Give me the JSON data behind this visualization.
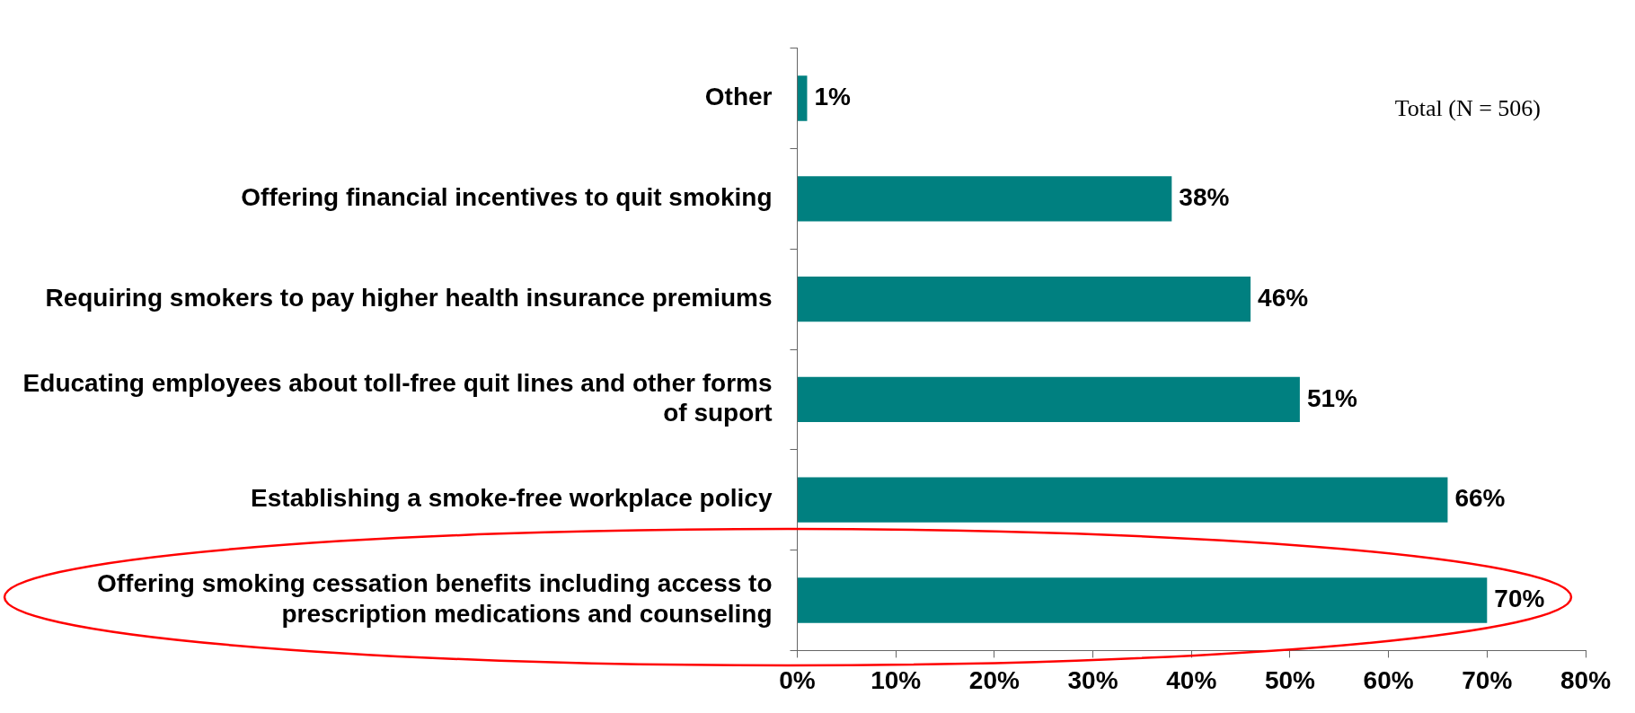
{
  "chart_data": {
    "type": "bar",
    "orientation": "horizontal",
    "categories": [
      "Other",
      "Offering financial incentives to quit smoking",
      "Requiring smokers to pay higher health insurance premiums",
      "Educating employees about toll-free quit lines and other forms of suport",
      "Establishing a smoke-free workplace policy",
      "Offering smoking cessation benefits including access to prescription medications and counseling"
    ],
    "values": [
      1,
      38,
      46,
      51,
      66,
      70
    ],
    "value_labels": [
      "1%",
      "38%",
      "46%",
      "51%",
      "66%",
      "70%"
    ],
    "color": "#008080",
    "xlim": [
      0,
      80
    ],
    "xticks": [
      {
        "value": 0,
        "label": "0%"
      },
      {
        "value": 10,
        "label": "10%"
      },
      {
        "value": 20,
        "label": "20%"
      },
      {
        "value": 30,
        "label": "30%"
      },
      {
        "value": 40,
        "label": "40%"
      },
      {
        "value": 50,
        "label": "50%"
      },
      {
        "value": 60,
        "label": "60%"
      },
      {
        "value": 70,
        "label": "70%"
      },
      {
        "value": 80,
        "label": "80%"
      }
    ],
    "annotations": [
      "Total (N = 506)"
    ],
    "grid": false,
    "legend": false
  }
}
